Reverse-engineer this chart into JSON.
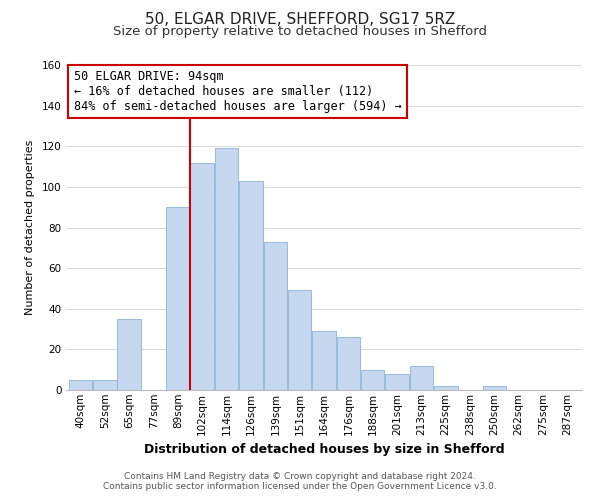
{
  "title": "50, ELGAR DRIVE, SHEFFORD, SG17 5RZ",
  "subtitle": "Size of property relative to detached houses in Shefford",
  "xlabel": "Distribution of detached houses by size in Shefford",
  "ylabel": "Number of detached properties",
  "bin_labels": [
    "40sqm",
    "52sqm",
    "65sqm",
    "77sqm",
    "89sqm",
    "102sqm",
    "114sqm",
    "126sqm",
    "139sqm",
    "151sqm",
    "164sqm",
    "176sqm",
    "188sqm",
    "201sqm",
    "213sqm",
    "225sqm",
    "238sqm",
    "250sqm",
    "262sqm",
    "275sqm",
    "287sqm"
  ],
  "bar_values": [
    5,
    5,
    35,
    0,
    90,
    112,
    119,
    103,
    73,
    49,
    29,
    26,
    10,
    8,
    12,
    2,
    0,
    2,
    0,
    0,
    0
  ],
  "bar_color": "#c5d8f0",
  "bar_edge_color": "#8ab4d4",
  "vline_x_index": 4.5,
  "vline_color": "#cc0000",
  "ylim": [
    0,
    160
  ],
  "yticks": [
    0,
    20,
    40,
    60,
    80,
    100,
    120,
    140,
    160
  ],
  "annotation_title": "50 ELGAR DRIVE: 94sqm",
  "annotation_line1": "← 16% of detached houses are smaller (112)",
  "annotation_line2": "84% of semi-detached houses are larger (594) →",
  "annotation_box_color": "#ffffff",
  "annotation_box_edge": "#cc0000",
  "footer1": "Contains HM Land Registry data © Crown copyright and database right 2024.",
  "footer2": "Contains public sector information licensed under the Open Government Licence v3.0.",
  "title_fontsize": 11,
  "subtitle_fontsize": 9.5,
  "xlabel_fontsize": 9,
  "ylabel_fontsize": 8,
  "tick_fontsize": 7.5,
  "footer_fontsize": 6.5,
  "annotation_fontsize": 8.5,
  "grid_color": "#d8d8d8"
}
